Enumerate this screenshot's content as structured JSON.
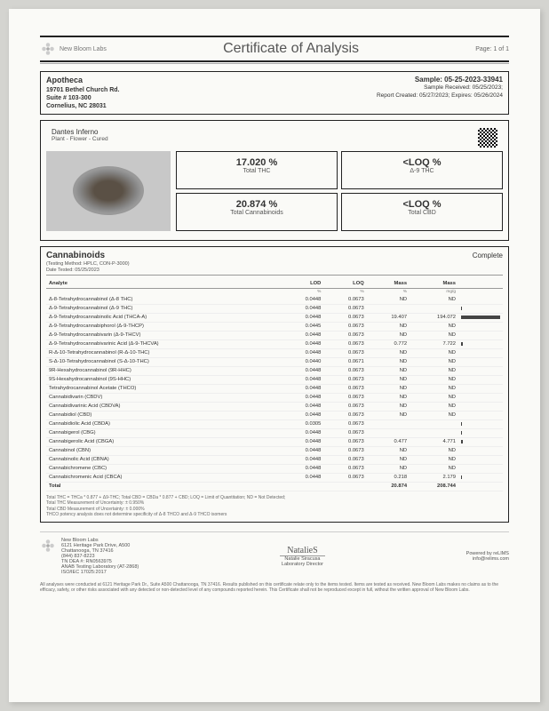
{
  "header": {
    "lab_name": "New Bloom Labs",
    "title": "Certificate of Analysis",
    "page": "Page: 1 of 1"
  },
  "client": {
    "name": "Apotheca",
    "addr1": "19701 Bethel Church Rd.",
    "addr2": "Suite # 103-300",
    "addr3": "Cornelius, NC 28031"
  },
  "sample": {
    "id": "Sample: 05-25-2023-33941",
    "received": "Sample Received: 05/25/2023;",
    "report": "Report Created: 05/27/2023; Expires: 05/26/2024"
  },
  "product": {
    "name": "Dantes Inferno",
    "type": "Plant - Flower - Cured"
  },
  "stats": {
    "thc_val": "17.020 %",
    "thc_label": "Total THC",
    "d9_val": "<LOQ %",
    "d9_label": "Δ-9 THC",
    "cann_val": "20.874 %",
    "cann_label": "Total Cannabinoids",
    "cbd_val": "<LOQ %",
    "cbd_label": "Total CBD"
  },
  "cann": {
    "title": "Cannabinoids",
    "method": "(Testing Method: HPLC, CON-P-3000)",
    "date": "Date Tested: 05/25/2023",
    "status": "Complete",
    "cols": [
      "Analyte",
      "LOD",
      "LOQ",
      "Mass",
      "Mass",
      ""
    ],
    "units": [
      "",
      "%",
      "%",
      "%",
      "mg/g",
      ""
    ],
    "rows": [
      [
        "Δ-8-Tetrahydrocannabinol (Δ-8 THC)",
        "0.0448",
        "0.0673",
        "ND",
        "ND",
        0
      ],
      [
        "Δ-9-Tetrahydrocannabinol (Δ-9 THC)",
        "0.0448",
        "0.0673",
        "<LOQ",
        "<LOQ",
        1
      ],
      [
        "Δ-9-Tetrahydrocannabinolic Acid (THCA-A)",
        "0.0448",
        "0.0673",
        "19.407",
        "194.072",
        100
      ],
      [
        "Δ-9-Tetrahydrocannabiphorol (Δ-9-THCP)",
        "0.0445",
        "0.0673",
        "ND",
        "ND",
        0
      ],
      [
        "Δ-9-Tetrahydrocannabivarin (Δ-9-THCV)",
        "0.0448",
        "0.0673",
        "ND",
        "ND",
        0
      ],
      [
        "Δ-9-Tetrahydrocannabivarinic Acid (Δ-9-THCVA)",
        "0.0448",
        "0.0673",
        "0.772",
        "7.722",
        5
      ],
      [
        "R-Δ-10-Tetrahydrocannabinol (R-Δ-10-THC)",
        "0.0448",
        "0.0673",
        "ND",
        "ND",
        0
      ],
      [
        "S-Δ-10-Tetrahydrocannabinol (S-Δ-10-THC)",
        "0.0440",
        "0.0671",
        "ND",
        "ND",
        0
      ],
      [
        "9R-Hexahydrocannabinol (9R-HHC)",
        "0.0448",
        "0.0673",
        "ND",
        "ND",
        0
      ],
      [
        "9S-Hexahydrocannabinol (9S-HHC)",
        "0.0448",
        "0.0673",
        "ND",
        "ND",
        0
      ],
      [
        "Tetrahydrocannabinol Acetate (THCO)",
        "0.0448",
        "0.0673",
        "ND",
        "ND",
        0
      ],
      [
        "Cannabidivarin (CBDV)",
        "0.0448",
        "0.0673",
        "ND",
        "ND",
        0
      ],
      [
        "Cannabidivarinic Acid (CBDVA)",
        "0.0448",
        "0.0673",
        "ND",
        "ND",
        0
      ],
      [
        "Cannabidiol (CBD)",
        "0.0448",
        "0.0673",
        "ND",
        "ND",
        0
      ],
      [
        "Cannabidiolic Acid (CBDA)",
        "0.0305",
        "0.0673",
        "<LOQ",
        "<LOQ",
        1
      ],
      [
        "Cannabigerol (CBG)",
        "0.0448",
        "0.0673",
        "<LOQ",
        "<LOQ",
        1
      ],
      [
        "Cannabigerolic Acid (CBGA)",
        "0.0448",
        "0.0673",
        "0.477",
        "4.771",
        4
      ],
      [
        "Cannabinol (CBN)",
        "0.0448",
        "0.0673",
        "ND",
        "ND",
        0
      ],
      [
        "Cannabinolic Acid (CBNA)",
        "0.0448",
        "0.0673",
        "ND",
        "ND",
        0
      ],
      [
        "Cannabichromene (CBC)",
        "0.0448",
        "0.0673",
        "ND",
        "ND",
        0
      ],
      [
        "Cannabichromenic Acid (CBCA)",
        "0.0448",
        "0.0673",
        "0.218",
        "2.179",
        2
      ]
    ],
    "total": [
      "Total",
      "",
      "",
      "20.874",
      "208.744"
    ]
  },
  "footnotes": {
    "l1": "Total THC = THCa * 0.877 + Δ9-THC; Total CBD = CBDa * 0.877 + CBD; LOQ = Limit of Quantitation; ND = Not Detected;",
    "l2": "Total THC Measurement of Uncertainty: ± 0.950%",
    "l3": "Total CBD Measurement of Uncertainty: ± 0.000%",
    "l4": "THCO potency analysis does not determine specificity of Δ-8 THCO and Δ-9 THCO isomers"
  },
  "footer": {
    "addr1": "New Bloom Labs",
    "addr2": "6121 Heritage Park Drive, A500",
    "addr3": "Chattanooga, TN 37416",
    "addr4": "(844) 837-8223",
    "addr5": "TN DEA #: RN0563975",
    "addr6": "ANAB Testing Laboratory (AT-2868)",
    "addr7": "ISO/IEC 17025:2017",
    "sig_name": "Natalie Siracusa",
    "sig_title": "Laboratory Director",
    "powered": "Powered by reLIMS",
    "email": "info@relims.com"
  },
  "disclaimer": "All analyses were conducted at 6121 Heritage Park Dr., Suite A500 Chattanooga, TN 37416. Results published on this certificate relate only to the items tested. Items are tested as received. New Bloom Labs makes no claims as to the efficacy, safety, or other risks associated with any detected or non-detected level of any compounds reported herein. This Certificate shall not be reproduced except in full, without the written approval of New Bloom Labs."
}
